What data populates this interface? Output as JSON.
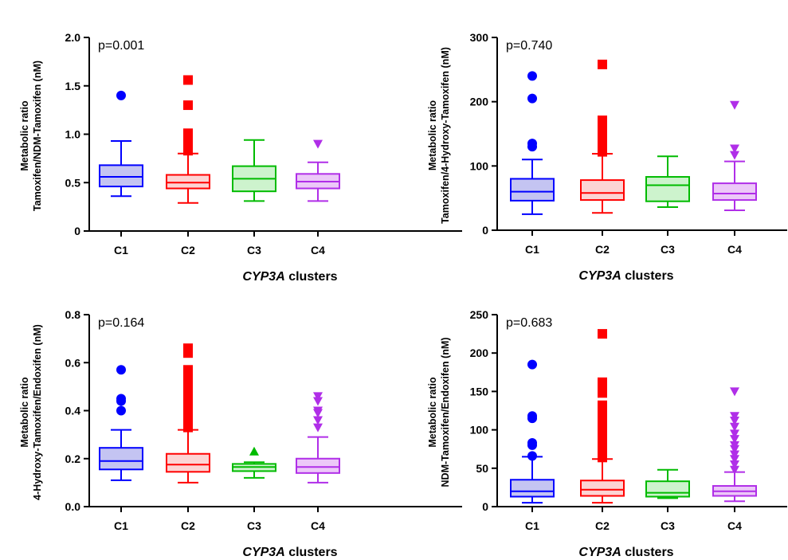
{
  "chart_data": [
    {
      "type": "box",
      "p_value": "p=0.001",
      "ylabel_lines": [
        "Metabolic ratio",
        "Tamoxifen/NDM-Tamoxifen (nM)"
      ],
      "xlabel_italic": "CYP3A",
      "xlabel_rest": " clusters",
      "categories": [
        "C1",
        "C2",
        "C3",
        "C4"
      ],
      "ylim": [
        0,
        2.0
      ],
      "yticks": [
        0,
        0.5,
        1.0,
        1.5,
        2.0
      ],
      "yticklabels": [
        "0",
        "0.5",
        "1.0",
        "1.5",
        "2.0"
      ],
      "boxes": [
        {
          "whisker_low": 0.36,
          "q1": 0.46,
          "median": 0.56,
          "q3": 0.68,
          "whisker_high": 0.93,
          "outliers": [
            1.4
          ]
        },
        {
          "whisker_low": 0.29,
          "q1": 0.44,
          "median": 0.5,
          "q3": 0.58,
          "whisker_high": 0.8,
          "outliers": [
            0.83,
            0.86,
            0.89,
            0.92,
            0.95,
            0.98,
            1.01,
            1.3,
            1.56
          ]
        },
        {
          "whisker_low": 0.31,
          "q1": 0.41,
          "median": 0.54,
          "q3": 0.67,
          "whisker_high": 0.94,
          "outliers": []
        },
        {
          "whisker_low": 0.31,
          "q1": 0.44,
          "median": 0.51,
          "q3": 0.59,
          "whisker_high": 0.71,
          "outliers": [
            0.9
          ]
        }
      ]
    },
    {
      "type": "box",
      "p_value": "p=0.740",
      "ylabel_lines": [
        "Metabolic ratio",
        "Tamoxifen/4-Hydroxy-Tamoxifen (nM)"
      ],
      "xlabel_italic": "CYP3A",
      "xlabel_rest": " clusters",
      "categories": [
        "C1",
        "C2",
        "C3",
        "C4"
      ],
      "ylim": [
        0,
        300
      ],
      "yticks": [
        0,
        100,
        200,
        300
      ],
      "yticklabels": [
        "0",
        "100",
        "200",
        "300"
      ],
      "boxes": [
        {
          "whisker_low": 25,
          "q1": 46,
          "median": 60,
          "q3": 80,
          "whisker_high": 110,
          "outliers": [
            130,
            135,
            205,
            240
          ]
        },
        {
          "whisker_low": 27,
          "q1": 47,
          "median": 58,
          "q3": 78,
          "whisker_high": 119,
          "outliers": [
            122,
            127,
            132,
            137,
            142,
            147,
            152,
            157,
            162,
            167,
            171,
            258
          ]
        },
        {
          "whisker_low": 36,
          "q1": 45,
          "median": 70,
          "q3": 83,
          "whisker_high": 115,
          "outliers": []
        },
        {
          "whisker_low": 31,
          "q1": 47,
          "median": 57,
          "q3": 73,
          "whisker_high": 107,
          "outliers": [
            117,
            127,
            195
          ]
        }
      ]
    },
    {
      "type": "box",
      "p_value": "p=0.164",
      "ylabel_lines": [
        "Metabolic ratio",
        "4-Hydroxy-Tamoxifen/Endoxifen (nM)"
      ],
      "xlabel_italic": "CYP3A",
      "xlabel_rest": " clusters",
      "categories": [
        "C1",
        "C2",
        "C3",
        "C4"
      ],
      "ylim": [
        0,
        0.8
      ],
      "yticks": [
        0,
        0.2,
        0.4,
        0.6,
        0.8
      ],
      "yticklabels": [
        "0.0",
        "0.2",
        "0.4",
        "0.6",
        "0.8"
      ],
      "boxes": [
        {
          "whisker_low": 0.11,
          "q1": 0.155,
          "median": 0.19,
          "q3": 0.245,
          "whisker_high": 0.32,
          "outliers": [
            0.4,
            0.44,
            0.45,
            0.57
          ]
        },
        {
          "whisker_low": 0.1,
          "q1": 0.145,
          "median": 0.175,
          "q3": 0.22,
          "whisker_high": 0.32,
          "outliers": [
            0.33,
            0.345,
            0.36,
            0.375,
            0.39,
            0.405,
            0.42,
            0.435,
            0.45,
            0.465,
            0.48,
            0.495,
            0.51,
            0.525,
            0.54,
            0.555,
            0.57,
            0.64,
            0.66
          ]
        },
        {
          "whisker_low": 0.12,
          "q1": 0.148,
          "median": 0.165,
          "q3": 0.178,
          "whisker_high": 0.185,
          "outliers": [
            0.23
          ]
        },
        {
          "whisker_low": 0.1,
          "q1": 0.14,
          "median": 0.165,
          "q3": 0.2,
          "whisker_high": 0.29,
          "outliers": [
            0.33,
            0.36,
            0.39,
            0.4,
            0.44,
            0.46
          ]
        }
      ]
    },
    {
      "type": "box",
      "p_value": "p=0.683",
      "ylabel_lines": [
        "Metabolic ratio",
        "NDM-Tamoxifen/Endoxifen (nM)"
      ],
      "xlabel_italic": "CYP3A",
      "xlabel_rest": " clusters",
      "categories": [
        "C1",
        "C2",
        "C3",
        "C4"
      ],
      "ylim": [
        0,
        250
      ],
      "yticks": [
        0,
        50,
        100,
        150,
        200,
        250
      ],
      "yticklabels": [
        "0",
        "50",
        "100",
        "150",
        "200",
        "250"
      ],
      "boxes": [
        {
          "whisker_low": 5,
          "q1": 13,
          "median": 20,
          "q3": 35,
          "whisker_high": 65,
          "outliers": [
            66,
            80,
            83,
            115,
            118,
            185
          ]
        },
        {
          "whisker_low": 5,
          "q1": 14,
          "median": 22,
          "q3": 34,
          "whisker_high": 62,
          "outliers": [
            64,
            68,
            72,
            76,
            80,
            84,
            88,
            92,
            96,
            100,
            104,
            108,
            112,
            116,
            120,
            124,
            128,
            132,
            148,
            155,
            162,
            225
          ]
        },
        {
          "whisker_low": 11,
          "q1": 13,
          "median": 18,
          "q3": 33,
          "whisker_high": 48,
          "outliers": []
        },
        {
          "whisker_low": 7,
          "q1": 14,
          "median": 20,
          "q3": 27,
          "whisker_high": 45,
          "outliers": [
            48,
            55,
            62,
            68,
            75,
            80,
            88,
            95,
            104,
            112,
            118,
            150
          ]
        }
      ]
    }
  ],
  "series_styles": [
    {
      "stroke": "#0000ff",
      "fill": "#c4c4f2",
      "marker": "circle"
    },
    {
      "stroke": "#ff0000",
      "fill": "#fcd4d4",
      "marker": "square"
    },
    {
      "stroke": "#00bb00",
      "fill": "#cdf3cd",
      "marker": "triangle-up"
    },
    {
      "stroke": "#b02ee8",
      "fill": "#ecc8f8",
      "marker": "triangle-down"
    }
  ]
}
